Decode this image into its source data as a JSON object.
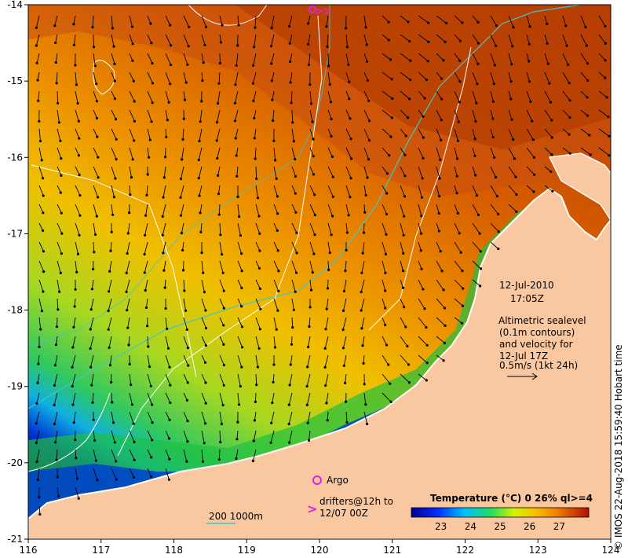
{
  "map": {
    "lon_range": [
      116,
      124
    ],
    "lat_range": [
      -21,
      -14
    ],
    "x_ticks": [
      "116",
      "117",
      "118",
      "119",
      "120",
      "121",
      "122",
      "123",
      "124"
    ],
    "y_ticks": [
      "-14",
      "-15",
      "-16",
      "-17",
      "-18",
      "-19",
      "-20",
      "-21"
    ],
    "land_color": "#fac8a0",
    "sea_warm_color": "#c84a00",
    "sea_cool_color": "#08106e"
  },
  "annotations": {
    "date": "12-Jul-2010",
    "time": "17:05Z",
    "desc_line1": "Altimetric sealevel",
    "desc_line2": "(0.1m contours)",
    "desc_line3": "and velocity for",
    "desc_line4": "12-Jul 17Z",
    "desc_line5": "0.5m/s (1kt 24h)",
    "argo_label": "Argo",
    "drifter_line1": "drifters@12h to",
    "drifter_line2": "12/07 00Z",
    "bathy_label": "200  1000m",
    "credit": "© IMOS 22-Aug-2018 15:59:40 Hobart time"
  },
  "colorbar": {
    "title": "Temperature (°C) 0 26% ql>=4",
    "ticks": [
      "23",
      "24",
      "25",
      "26",
      "27"
    ],
    "range": [
      22,
      28
    ]
  },
  "colors": {
    "argo": "#e020e0",
    "drifter": "#e020e0",
    "bathy": "#40c8c8",
    "contour": "#ffffff"
  }
}
